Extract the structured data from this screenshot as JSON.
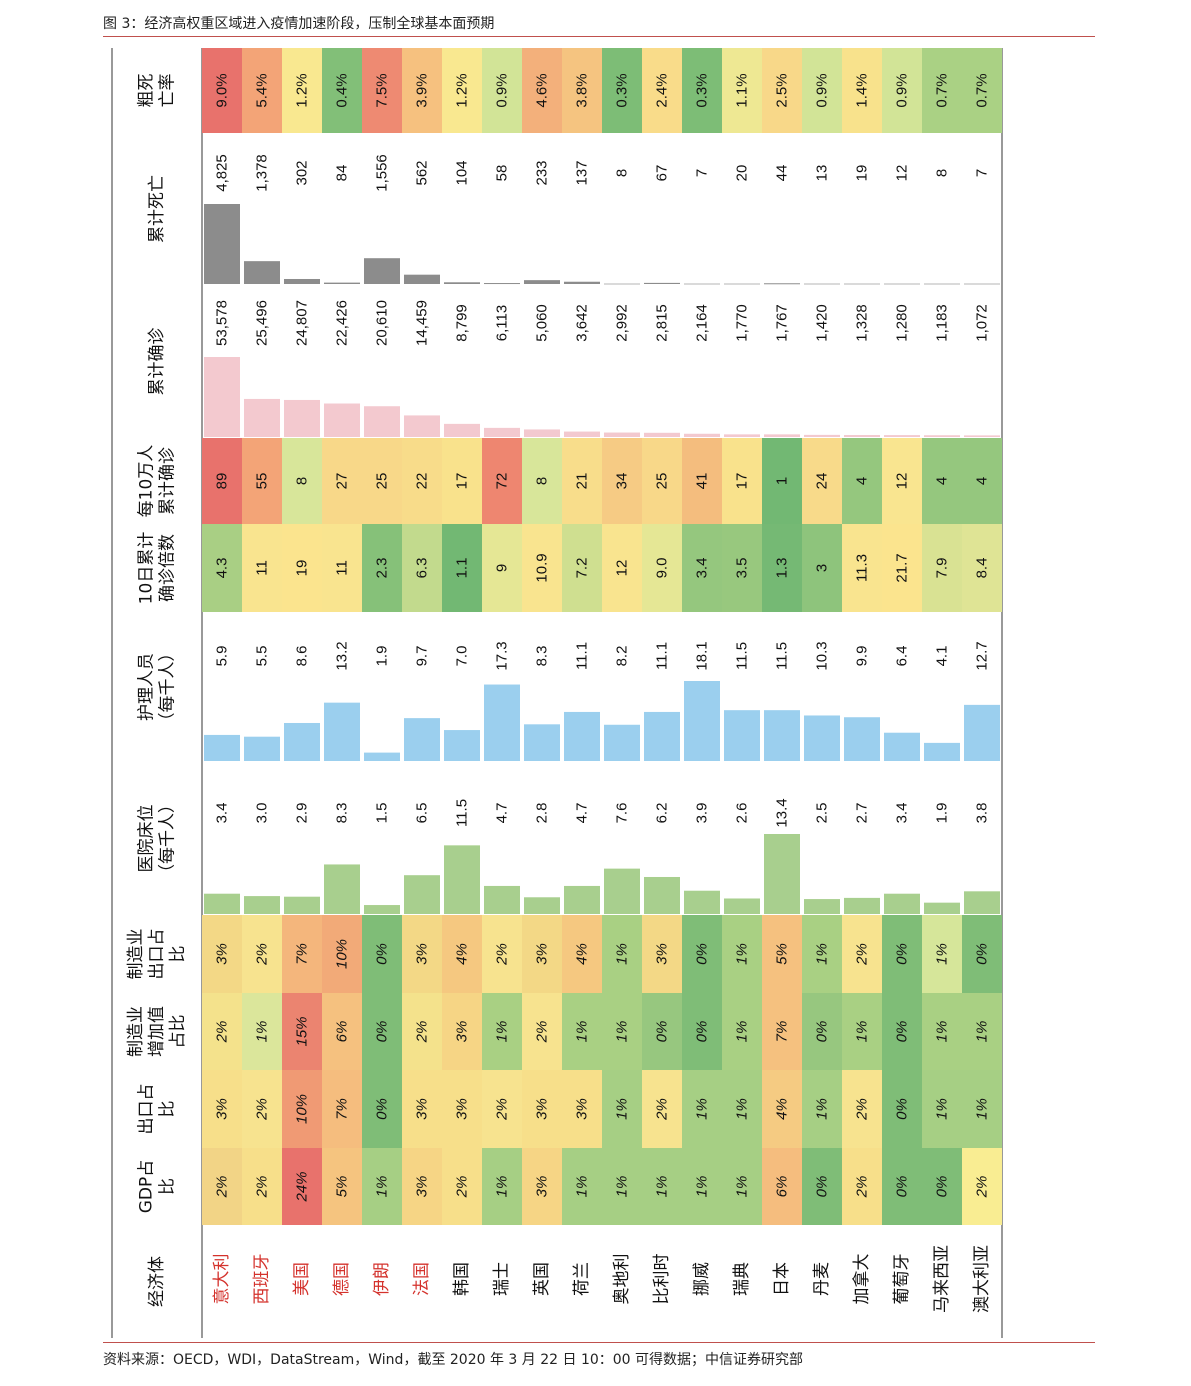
{
  "figure_title": "图 3：经济高权重区域进入疫情加速阶段，压制全球基本面预期",
  "source_note": "资料来源：OECD，WDI，DataStream，Wind，截至 2020 年 3 月 22 日 10：00 可得数据；中信证券研究部",
  "colors": {
    "accent_rule": "#c0504d",
    "highlight_name": "#d4322c",
    "normal_name": "#111111",
    "confirmed_bar": "#f3c9cf",
    "deaths_bar": "#8c8c8c",
    "nurses_bar": "#9bcfee",
    "beds_bar": "#a8cf8e"
  },
  "chart_data": {
    "type": "table",
    "orientation": "rotated 90° counter-clockwise (header column on the left, rows run left-to-right)",
    "columns": [
      {
        "key": "economy",
        "header": [
          "经济体"
        ]
      },
      {
        "key": "gdp_share",
        "header": [
          "GDP占",
          "比"
        ]
      },
      {
        "key": "export_share",
        "header": [
          "出口占",
          "比"
        ]
      },
      {
        "key": "mfg_va_share",
        "header": [
          "制造业",
          "增加值",
          "占比"
        ]
      },
      {
        "key": "mfg_export_share",
        "header": [
          "制造业",
          "出口占",
          "比"
        ]
      },
      {
        "key": "hospital_beds",
        "header": [
          "医院床位",
          "（每千人）"
        ]
      },
      {
        "key": "nurses",
        "header": [
          "护理人员",
          "（每千人）"
        ]
      },
      {
        "key": "ten_day_multiple",
        "header": [
          "10日累计",
          "确诊倍数"
        ]
      },
      {
        "key": "per_100k",
        "header": [
          "每10万人",
          "累计确诊"
        ]
      },
      {
        "key": "cum_confirmed",
        "header": [
          "累计确诊"
        ]
      },
      {
        "key": "cum_deaths",
        "header": [
          "累计死亡"
        ]
      },
      {
        "key": "cfr",
        "header": [
          "粗死",
          "亡率"
        ]
      }
    ],
    "rows": [
      {
        "economy": "意大利",
        "highlight": true,
        "gdp_share": "2%",
        "export_share": "3%",
        "mfg_va_share": "2%",
        "mfg_export_share": "3%",
        "hospital_beds": "3.4",
        "nurses": "5.9",
        "ten_day_multiple": "4.3",
        "per_100k": "89",
        "cum_confirmed": "53,578",
        "cum_deaths": "4,825",
        "cfr": "9.0%",
        "v": {
          "hospital_beds": 3.4,
          "nurses": 5.9,
          "cum_confirmed": 53578,
          "cum_deaths": 4825
        },
        "colors": {
          "gdp_share": "#f2d486",
          "export_share": "#f7df8a",
          "mfg_va_share": "#f4e28c",
          "mfg_export_share": "#f3d886",
          "ten_day_multiple": "#a9cf84",
          "per_100k": "#e8726c",
          "cfr": "#e8726c"
        }
      },
      {
        "economy": "西班牙",
        "highlight": true,
        "gdp_share": "2%",
        "export_share": "2%",
        "mfg_va_share": "1%",
        "mfg_export_share": "2%",
        "hospital_beds": "3.0",
        "nurses": "5.5",
        "ten_day_multiple": "11",
        "per_100k": "55",
        "cum_confirmed": "25,496",
        "cum_deaths": "1,378",
        "cfr": "5.4%",
        "v": {
          "hospital_beds": 3.0,
          "nurses": 5.5,
          "cum_confirmed": 25496,
          "cum_deaths": 1378
        },
        "colors": {
          "gdp_share": "#f7df8a",
          "export_share": "#f7e38f",
          "mfg_va_share": "#dbe69b",
          "mfg_export_share": "#f7e38f",
          "ten_day_multiple": "#f9e48f",
          "per_100k": "#f3a477",
          "cfr": "#f3a477"
        }
      },
      {
        "economy": "美国",
        "highlight": true,
        "gdp_share": "24%",
        "export_share": "10%",
        "mfg_va_share": "15%",
        "mfg_export_share": "7%",
        "hospital_beds": "2.9",
        "nurses": "8.6",
        "ten_day_multiple": "19",
        "per_100k": "8",
        "cum_confirmed": "24,807",
        "cum_deaths": "302",
        "cfr": "1.2%",
        "v": {
          "hospital_beds": 2.9,
          "nurses": 8.6,
          "cum_confirmed": 24807,
          "cum_deaths": 302
        },
        "colors": {
          "gdp_share": "#e8726c",
          "export_share": "#f09a74",
          "mfg_va_share": "#eb8470",
          "mfg_export_share": "#f4b67c",
          "ten_day_multiple": "#fbe48e",
          "per_100k": "#d8e69a",
          "cfr": "#f9e890"
        }
      },
      {
        "economy": "德国",
        "highlight": true,
        "gdp_share": "5%",
        "export_share": "7%",
        "mfg_va_share": "6%",
        "mfg_export_share": "10%",
        "hospital_beds": "8.3",
        "nurses": "13.2",
        "ten_day_multiple": "11",
        "per_100k": "27",
        "cum_confirmed": "22,426",
        "cum_deaths": "84",
        "cfr": "0.4%",
        "v": {
          "hospital_beds": 8.3,
          "nurses": 13.2,
          "cum_confirmed": 22426,
          "cum_deaths": 84
        },
        "colors": {
          "gdp_share": "#f5c47f",
          "export_share": "#f5bd7e",
          "mfg_va_share": "#f5c17f",
          "mfg_export_share": "#f2aa78",
          "ten_day_multiple": "#f9e48f",
          "per_100k": "#f8d889",
          "cfr": "#82bf78"
        }
      },
      {
        "economy": "伊朗",
        "highlight": true,
        "gdp_share": "1%",
        "export_share": "0%",
        "mfg_va_share": "0%",
        "mfg_export_share": "0%",
        "hospital_beds": "1.5",
        "nurses": "1.9",
        "ten_day_multiple": "2.3",
        "per_100k": "25",
        "cum_confirmed": "20,610",
        "cum_deaths": "1,556",
        "cfr": "7.5%",
        "v": {
          "hospital_beds": 1.5,
          "nurses": 1.9,
          "cum_confirmed": 20610,
          "cum_deaths": 1556
        },
        "colors": {
          "gdp_share": "#a6cf84",
          "export_share": "#7fbd77",
          "mfg_va_share": "#7fbd77",
          "mfg_export_share": "#7fbd77",
          "ten_day_multiple": "#86c179",
          "per_100k": "#f8d889",
          "cfr": "#ee8a72"
        }
      },
      {
        "economy": "法国",
        "highlight": true,
        "gdp_share": "3%",
        "export_share": "3%",
        "mfg_va_share": "2%",
        "mfg_export_share": "3%",
        "hospital_beds": "6.5",
        "nurses": "9.7",
        "ten_day_multiple": "6.3",
        "per_100k": "22",
        "cum_confirmed": "14,459",
        "cum_deaths": "562",
        "cfr": "3.9%",
        "v": {
          "hospital_beds": 6.5,
          "nurses": 9.7,
          "cum_confirmed": 14459,
          "cum_deaths": 562
        },
        "colors": {
          "gdp_share": "#f6d585",
          "export_share": "#f7df8a",
          "mfg_va_share": "#f4e28c",
          "mfg_export_share": "#f3d886",
          "ten_day_multiple": "#c2da8d",
          "per_100k": "#f8dc8a",
          "cfr": "#f6c17f"
        }
      },
      {
        "economy": "韩国",
        "highlight": false,
        "gdp_share": "2%",
        "export_share": "3%",
        "mfg_va_share": "3%",
        "mfg_export_share": "4%",
        "hospital_beds": "11.5",
        "nurses": "7.0",
        "ten_day_multiple": "1.1",
        "per_100k": "17",
        "cum_confirmed": "8,799",
        "cum_deaths": "104",
        "cfr": "1.2%",
        "v": {
          "hospital_beds": 11.5,
          "nurses": 7.0,
          "cum_confirmed": 8799,
          "cum_deaths": 104
        },
        "colors": {
          "gdp_share": "#f7df8a",
          "export_share": "#f7df8a",
          "mfg_va_share": "#f6d585",
          "mfg_export_share": "#f5c880",
          "ten_day_multiple": "#72b873",
          "per_100k": "#f9e28c",
          "cfr": "#f9e890"
        }
      },
      {
        "economy": "瑞士",
        "highlight": false,
        "gdp_share": "1%",
        "export_share": "2%",
        "mfg_va_share": "1%",
        "mfg_export_share": "2%",
        "hospital_beds": "4.7",
        "nurses": "17.3",
        "ten_day_multiple": "9",
        "per_100k": "72",
        "cum_confirmed": "6,113",
        "cum_deaths": "58",
        "cfr": "0.9%",
        "v": {
          "hospital_beds": 4.7,
          "nurses": 17.3,
          "cum_confirmed": 6113,
          "cum_deaths": 58
        },
        "colors": {
          "gdp_share": "#a6cf84",
          "export_share": "#f7e38f",
          "mfg_va_share": "#a9d083",
          "mfg_export_share": "#f7e38f",
          "ten_day_multiple": "#e5e795",
          "per_100k": "#ee8670",
          "cfr": "#d2e497"
        }
      },
      {
        "economy": "英国",
        "highlight": false,
        "gdp_share": "3%",
        "export_share": "3%",
        "mfg_va_share": "2%",
        "mfg_export_share": "3%",
        "hospital_beds": "2.8",
        "nurses": "8.3",
        "ten_day_multiple": "10.9",
        "per_100k": "8",
        "cum_confirmed": "5,060",
        "cum_deaths": "233",
        "cfr": "4.6%",
        "v": {
          "hospital_beds": 2.8,
          "nurses": 8.3,
          "cum_confirmed": 5060,
          "cum_deaths": 233
        },
        "colors": {
          "gdp_share": "#f6d585",
          "export_share": "#f7df8a",
          "mfg_va_share": "#f7e38f",
          "mfg_export_share": "#f3d886",
          "ten_day_multiple": "#f9e48f",
          "per_100k": "#d8e69a",
          "cfr": "#f3b07b"
        }
      },
      {
        "economy": "荷兰",
        "highlight": false,
        "gdp_share": "1%",
        "export_share": "3%",
        "mfg_va_share": "1%",
        "mfg_export_share": "4%",
        "hospital_beds": "4.7",
        "nurses": "11.1",
        "ten_day_multiple": "7.2",
        "per_100k": "21",
        "cum_confirmed": "3,642",
        "cum_deaths": "137",
        "cfr": "3.8%",
        "v": {
          "hospital_beds": 4.7,
          "nurses": 11.1,
          "cum_confirmed": 3642,
          "cum_deaths": 137
        },
        "colors": {
          "gdp_share": "#a6cf84",
          "export_share": "#f7df8a",
          "mfg_va_share": "#a9d083",
          "mfg_export_share": "#f5c880",
          "ten_day_multiple": "#cfdf90",
          "per_100k": "#f8dd8b",
          "cfr": "#f5c480"
        }
      },
      {
        "economy": "奥地利",
        "highlight": false,
        "gdp_share": "1%",
        "export_share": "1%",
        "mfg_va_share": "1%",
        "mfg_export_share": "1%",
        "hospital_beds": "7.6",
        "nurses": "8.2",
        "ten_day_multiple": "12",
        "per_100k": "34",
        "cum_confirmed": "2,992",
        "cum_deaths": "8",
        "cfr": "0.3%",
        "v": {
          "hospital_beds": 7.6,
          "nurses": 8.2,
          "cum_confirmed": 2992,
          "cum_deaths": 8
        },
        "colors": {
          "gdp_share": "#a6cf84",
          "export_share": "#a6cf84",
          "mfg_va_share": "#a9d083",
          "mfg_export_share": "#a9d083",
          "ten_day_multiple": "#f9e48f",
          "per_100k": "#f6cb84",
          "cfr": "#7dbd76"
        }
      },
      {
        "economy": "比利时",
        "highlight": false,
        "gdp_share": "1%",
        "export_share": "2%",
        "mfg_va_share": "0%",
        "mfg_export_share": "3%",
        "hospital_beds": "6.2",
        "nurses": "11.1",
        "ten_day_multiple": "9.0",
        "per_100k": "25",
        "cum_confirmed": "2,815",
        "cum_deaths": "67",
        "cfr": "2.4%",
        "v": {
          "hospital_beds": 6.2,
          "nurses": 11.1,
          "cum_confirmed": 2815,
          "cum_deaths": 67
        },
        "colors": {
          "gdp_share": "#a6cf84",
          "export_share": "#f7e38f",
          "mfg_va_share": "#97c77f",
          "mfg_export_share": "#f3d886",
          "ten_day_multiple": "#e5e795",
          "per_100k": "#f8d889",
          "cfr": "#f9dc8a"
        }
      },
      {
        "economy": "挪威",
        "highlight": false,
        "gdp_share": "1%",
        "export_share": "1%",
        "mfg_va_share": "0%",
        "mfg_export_share": "0%",
        "hospital_beds": "3.9",
        "nurses": "18.1",
        "ten_day_multiple": "3.4",
        "per_100k": "41",
        "cum_confirmed": "2,164",
        "cum_deaths": "7",
        "cfr": "0.3%",
        "v": {
          "hospital_beds": 3.9,
          "nurses": 18.1,
          "cum_confirmed": 2164,
          "cum_deaths": 7
        },
        "colors": {
          "gdp_share": "#a6cf84",
          "export_share": "#a6cf84",
          "mfg_va_share": "#7fbd77",
          "mfg_export_share": "#7fbd77",
          "ten_day_multiple": "#95c77e",
          "per_100k": "#f4bd7e",
          "cfr": "#7dbd76"
        }
      },
      {
        "economy": "瑞典",
        "highlight": false,
        "gdp_share": "1%",
        "export_share": "1%",
        "mfg_va_share": "1%",
        "mfg_export_share": "1%",
        "hospital_beds": "2.6",
        "nurses": "11.5",
        "ten_day_multiple": "3.5",
        "per_100k": "17",
        "cum_confirmed": "1,770",
        "cum_deaths": "20",
        "cfr": "1.1%",
        "v": {
          "hospital_beds": 2.6,
          "nurses": 11.5,
          "cum_confirmed": 1770,
          "cum_deaths": 20
        },
        "colors": {
          "gdp_share": "#a6cf84",
          "export_share": "#a6cf84",
          "mfg_va_share": "#a9d083",
          "mfg_export_share": "#a9d083",
          "ten_day_multiple": "#98c87e",
          "per_100k": "#f9e28c",
          "cfr": "#eee893"
        }
      },
      {
        "economy": "日本",
        "highlight": false,
        "gdp_share": "6%",
        "export_share": "4%",
        "mfg_va_share": "7%",
        "mfg_export_share": "5%",
        "hospital_beds": "13.4",
        "nurses": "11.5",
        "ten_day_multiple": "1.3",
        "per_100k": "1",
        "cum_confirmed": "1,767",
        "cum_deaths": "44",
        "cfr": "2.5%",
        "v": {
          "hospital_beds": 13.4,
          "nurses": 11.5,
          "cum_confirmed": 1767,
          "cum_deaths": 44
        },
        "colors": {
          "gdp_share": "#f5bd7e",
          "export_share": "#f5cb82",
          "mfg_va_share": "#f5c17f",
          "mfg_export_share": "#f5c17f",
          "ten_day_multiple": "#75b974",
          "per_100k": "#72b873",
          "cfr": "#f8d889"
        }
      },
      {
        "economy": "丹麦",
        "highlight": false,
        "gdp_share": "0%",
        "export_share": "1%",
        "mfg_va_share": "0%",
        "mfg_export_share": "1%",
        "hospital_beds": "2.5",
        "nurses": "10.3",
        "ten_day_multiple": "3",
        "per_100k": "24",
        "cum_confirmed": "1,420",
        "cum_deaths": "13",
        "cfr": "0.9%",
        "v": {
          "hospital_beds": 2.5,
          "nurses": 10.3,
          "cum_confirmed": 1420,
          "cum_deaths": 13
        },
        "colors": {
          "gdp_share": "#7fbd77",
          "export_share": "#a6cf84",
          "mfg_va_share": "#97c77f",
          "mfg_export_share": "#a9d083",
          "ten_day_multiple": "#8ec47c",
          "per_100k": "#f8da8a",
          "cfr": "#d2e497"
        }
      },
      {
        "economy": "加拿大",
        "highlight": false,
        "gdp_share": "2%",
        "export_share": "2%",
        "mfg_va_share": "1%",
        "mfg_export_share": "2%",
        "hospital_beds": "2.7",
        "nurses": "9.9",
        "ten_day_multiple": "11.3",
        "per_100k": "4",
        "cum_confirmed": "1,328",
        "cum_deaths": "19",
        "cfr": "1.4%",
        "v": {
          "hospital_beds": 2.7,
          "nurses": 9.9,
          "cum_confirmed": 1328,
          "cum_deaths": 19
        },
        "colors": {
          "gdp_share": "#f7df8a",
          "export_share": "#f7e38f",
          "mfg_va_share": "#a9d083",
          "mfg_export_share": "#f7e38f",
          "ten_day_multiple": "#f9e48f",
          "per_100k": "#95c77e",
          "cfr": "#f8e28c"
        }
      },
      {
        "economy": "葡萄牙",
        "highlight": false,
        "gdp_share": "0%",
        "export_share": "0%",
        "mfg_va_share": "0%",
        "mfg_export_share": "0%",
        "hospital_beds": "3.4",
        "nurses": "6.4",
        "ten_day_multiple": "21.7",
        "per_100k": "12",
        "cum_confirmed": "1,280",
        "cum_deaths": "12",
        "cfr": "0.9%",
        "v": {
          "hospital_beds": 3.4,
          "nurses": 6.4,
          "cum_confirmed": 1280,
          "cum_deaths": 12
        },
        "colors": {
          "gdp_share": "#7fbd77",
          "export_share": "#7fbd77",
          "mfg_va_share": "#7fbd77",
          "mfg_export_share": "#7fbd77",
          "ten_day_multiple": "#fbe48e",
          "per_100k": "#f9e590",
          "cfr": "#d2e497"
        }
      },
      {
        "economy": "马来西亚",
        "highlight": false,
        "gdp_share": "0%",
        "export_share": "1%",
        "mfg_va_share": "1%",
        "mfg_export_share": "1%",
        "hospital_beds": "1.9",
        "nurses": "4.1",
        "ten_day_multiple": "7.9",
        "per_100k": "4",
        "cum_confirmed": "1,183",
        "cum_deaths": "8",
        "cfr": "0.7%",
        "v": {
          "hospital_beds": 1.9,
          "nurses": 4.1,
          "cum_confirmed": 1183,
          "cum_deaths": 8
        },
        "colors": {
          "gdp_share": "#7fbd77",
          "export_share": "#a6cf84",
          "mfg_va_share": "#a9d083",
          "mfg_export_share": "#d6e69a",
          "ten_day_multiple": "#d9e293",
          "per_100k": "#95c77e",
          "cfr": "#aad184"
        }
      },
      {
        "economy": "澳大利亚",
        "highlight": false,
        "gdp_share": "2%",
        "export_share": "1%",
        "mfg_va_share": "1%",
        "mfg_export_share": "0%",
        "hospital_beds": "3.8",
        "nurses": "12.7",
        "ten_day_multiple": "8.4",
        "per_100k": "4",
        "cum_confirmed": "1,072",
        "cum_deaths": "7",
        "cfr": "0.7%",
        "v": {
          "hospital_beds": 3.8,
          "nurses": 12.7,
          "cum_confirmed": 1072,
          "cum_deaths": 7
        },
        "colors": {
          "gdp_share": "#f9ed92",
          "export_share": "#a6cf84",
          "mfg_va_share": "#a9d083",
          "mfg_export_share": "#7fbd77",
          "ten_day_multiple": "#dfe495",
          "per_100k": "#95c77e",
          "cfr": "#aad184"
        }
      }
    ]
  }
}
